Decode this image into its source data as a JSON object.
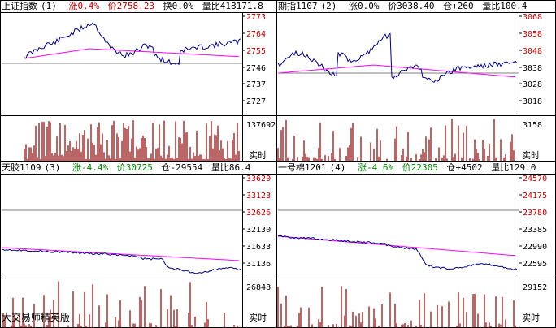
{
  "panels": [
    {
      "id": 1,
      "name": "上证指数",
      "index_label": "(1)",
      "change": "涨0.4%",
      "price": "价2758.23",
      "turnover": "换0.0%",
      "volume_ratio": "量比418171.8",
      "price_ticks": [
        "2773",
        "2764",
        "2755",
        "2746",
        "2737",
        "2727"
      ],
      "volume_max": "137692",
      "realtime_label": "实时",
      "change_direction": "up"
    },
    {
      "id": 2,
      "name": "期指1107",
      "index_label": "(2)",
      "change": "涨0.0%",
      "price": "价3038.40",
      "open_interest": "仓+260",
      "volume_ratio": "量比100.4",
      "price_ticks": [
        "3068",
        "3058",
        "3048",
        "3038",
        "3028",
        "3018"
      ],
      "volume_max": "3158",
      "realtime_label": "实时",
      "change_direction": "up"
    },
    {
      "id": 3,
      "name": "天胶1109",
      "index_label": "(3)",
      "change": "涨-4.4%",
      "price": "价30725",
      "open_interest": "仓-29554",
      "volume_ratio": "量比86.4",
      "price_ticks": [
        "33620",
        "33123",
        "32626",
        "32130",
        "31633",
        "31136"
      ],
      "volume_max": "26848",
      "realtime_label": "实时",
      "change_direction": "down"
    },
    {
      "id": 4,
      "name": "一号棉1201",
      "index_label": "(4)",
      "change": "涨-4.6%",
      "price": "价22305",
      "open_interest": "仓+4502",
      "volume_ratio": "量比129.0",
      "price_ticks": [
        "24570",
        "24175",
        "23780",
        "23385",
        "22990",
        "22595"
      ],
      "volume_max": "29152",
      "realtime_label": "实时",
      "change_direction": "down"
    }
  ],
  "watermark": "大交易师精英版",
  "colors": {
    "price_line": "#000080",
    "avg_line": "#ff00ff",
    "volume_bar": "#8b0000",
    "grid": "#000000",
    "up_text": "#c00000",
    "down_text": "#008000"
  }
}
